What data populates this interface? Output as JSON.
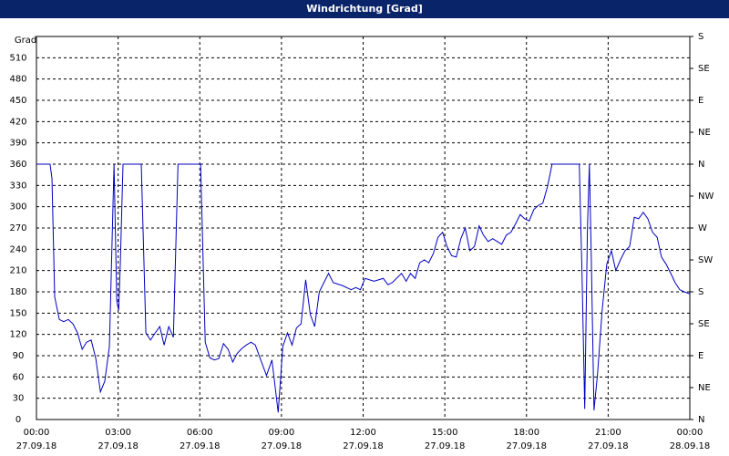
{
  "chart_data": {
    "type": "line",
    "title": "Windrichtung [Grad]",
    "y_label": "Grad",
    "xlim": [
      0,
      24
    ],
    "xticks": [
      {
        "value": 0,
        "label": "00:00"
      },
      {
        "value": 3,
        "label": "03:00"
      },
      {
        "value": 6,
        "label": "06:00"
      },
      {
        "value": 9,
        "label": "09:00"
      },
      {
        "value": 12,
        "label": "12:00"
      },
      {
        "value": 15,
        "label": "15:00"
      },
      {
        "value": 18,
        "label": "18:00"
      },
      {
        "value": 21,
        "label": "21:00"
      },
      {
        "value": 24,
        "label": "00:00"
      }
    ],
    "xtick_dates": [
      "27.09.18",
      "27.09.18",
      "27.09.18",
      "27.09.18",
      "27.09.18",
      "27.09.18",
      "27.09.18",
      "27.09.18",
      "28.09.18"
    ],
    "ylim": [
      0,
      540
    ],
    "yticks": [
      0,
      30,
      60,
      90,
      120,
      150,
      180,
      210,
      240,
      270,
      300,
      330,
      360,
      390,
      420,
      450,
      480,
      510
    ],
    "y2lim": [
      0,
      540
    ],
    "y2ticks": [
      {
        "value": 0,
        "label": "N"
      },
      {
        "value": 45,
        "label": "NE"
      },
      {
        "value": 90,
        "label": "E"
      },
      {
        "value": 135,
        "label": "SE"
      },
      {
        "value": 180,
        "label": "S"
      },
      {
        "value": 225,
        "label": "SW"
      },
      {
        "value": 270,
        "label": "W"
      },
      {
        "value": 315,
        "label": "NW"
      },
      {
        "value": 360,
        "label": "N"
      },
      {
        "value": 405,
        "label": "NE"
      },
      {
        "value": 450,
        "label": "E"
      },
      {
        "value": 495,
        "label": "SE"
      },
      {
        "value": 540,
        "label": "S"
      }
    ],
    "grid": true,
    "series": [
      {
        "color": "#0000c0",
        "x": [
          0,
          0.5,
          0.57,
          0.67,
          0.84,
          1.0,
          1.17,
          1.34,
          1.51,
          1.68,
          1.84,
          2.01,
          2.18,
          2.35,
          2.51,
          2.68,
          2.85,
          2.95,
          3.02,
          3.08,
          3.18,
          3.85,
          4.02,
          4.19,
          4.36,
          4.53,
          4.69,
          4.86,
          5.03,
          5.2,
          6.03,
          6.2,
          6.37,
          6.54,
          6.7,
          6.87,
          7.04,
          7.21,
          7.37,
          7.54,
          7.71,
          7.88,
          8.04,
          8.21,
          8.45,
          8.65,
          8.88,
          9.05,
          9.22,
          9.39,
          9.55,
          9.72,
          9.89,
          10.06,
          10.22,
          10.39,
          10.73,
          10.9,
          11.23,
          11.56,
          11.73,
          11.9,
          12.07,
          12.4,
          12.74,
          12.91,
          13.07,
          13.41,
          13.58,
          13.74,
          13.91,
          14.08,
          14.25,
          14.41,
          14.58,
          14.75,
          14.92,
          15.08,
          15.25,
          15.42,
          15.59,
          15.75,
          15.92,
          16.09,
          16.26,
          16.42,
          16.59,
          16.76,
          16.93,
          17.09,
          17.26,
          17.43,
          17.6,
          17.77,
          17.93,
          18.1,
          18.27,
          18.44,
          18.6,
          18.77,
          18.94,
          19.94,
          20.04,
          20.14,
          20.24,
          20.31,
          20.38,
          20.48,
          20.61,
          20.78,
          20.95,
          21.12,
          21.28,
          21.45,
          21.62,
          21.79,
          21.96,
          22.12,
          22.29,
          22.46,
          22.63,
          22.8,
          22.96,
          23.13,
          23.3,
          23.46,
          23.63,
          23.8,
          24
        ],
        "values": [
          360,
          360,
          340,
          173,
          141,
          138,
          141,
          135,
          122,
          99,
          109,
          112,
          86,
          39,
          54,
          103,
          360,
          167,
          154,
          219,
          360,
          360,
          122,
          112,
          122,
          131,
          105,
          131,
          116,
          360,
          360,
          109,
          87,
          84,
          86,
          107,
          99,
          81,
          93,
          100,
          105,
          109,
          105,
          87,
          62,
          84,
          10,
          103,
          122,
          105,
          129,
          135,
          197,
          148,
          131,
          180,
          206,
          193,
          189,
          183,
          186,
          183,
          199,
          195,
          199,
          190,
          193,
          206,
          195,
          206,
          199,
          221,
          225,
          221,
          234,
          257,
          264,
          244,
          231,
          229,
          255,
          270,
          238,
          244,
          273,
          260,
          251,
          255,
          251,
          247,
          260,
          264,
          276,
          289,
          283,
          280,
          296,
          302,
          305,
          328,
          360,
          360,
          206,
          15,
          270,
          360,
          231,
          13,
          64,
          154,
          219,
          238,
          210,
          225,
          238,
          244,
          285,
          283,
          292,
          283,
          264,
          257,
          229,
          219,
          206,
          193,
          183,
          180,
          177
        ]
      }
    ]
  }
}
